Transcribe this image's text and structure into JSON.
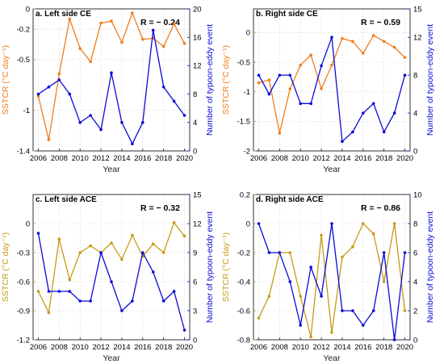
{
  "chart_data": [
    {
      "type": "line",
      "title": "a. Left side CE",
      "annotation": "R = − 0.24",
      "xlabel": "Year",
      "ylabel_left": "SSTCR (°C day⁻¹)",
      "ylabel_right": "Number of typoon-eddy event",
      "xlim": [
        2005.5,
        2020.5
      ],
      "x_ticks": [
        2006,
        2008,
        2010,
        2012,
        2014,
        2016,
        2018,
        2020
      ],
      "y_left_lim": [
        -1.4,
        0
      ],
      "y_left_ticks": [
        -1.4,
        -1,
        -0.5,
        -0.2,
        0
      ],
      "y_left_tick_labels": [
        "-1.4",
        "-1",
        "-0.5",
        "-0.2",
        "0"
      ],
      "y_right_lim": [
        0,
        20
      ],
      "y_right_ticks": [
        0,
        4,
        8,
        12,
        16,
        20
      ],
      "grid": true,
      "left_color": "#f07d1e",
      "right_color": "#0b0bd6",
      "series": [
        {
          "axis": "left",
          "x": [
            2006,
            2007,
            2008,
            2009,
            2010,
            2011,
            2012,
            2013,
            2014,
            2015,
            2016,
            2017,
            2018,
            2019,
            2020
          ],
          "values": [
            -0.86,
            -1.29,
            -0.64,
            -0.1,
            -0.39,
            -0.52,
            -0.14,
            -0.12,
            -0.33,
            -0.04,
            -0.3,
            -0.29,
            -0.37,
            -0.15,
            -0.34
          ]
        },
        {
          "axis": "right",
          "x": [
            2006,
            2007,
            2008,
            2009,
            2010,
            2011,
            2012,
            2013,
            2014,
            2015,
            2016,
            2017,
            2018,
            2019,
            2020
          ],
          "values": [
            8,
            9,
            10,
            8,
            4,
            5,
            3,
            11,
            4,
            1,
            4,
            17,
            9,
            7,
            5
          ]
        }
      ]
    },
    {
      "type": "line",
      "title": "b. Right side CE",
      "annotation": "R = − 0.59",
      "xlabel": "Year",
      "ylabel_left": "SSTCR (°C day⁻¹)",
      "ylabel_right": "Number of typoon-eddy event",
      "xlim": [
        2005.5,
        2020.5
      ],
      "x_ticks": [
        2006,
        2008,
        2010,
        2012,
        2014,
        2016,
        2018,
        2020
      ],
      "y_left_lim": [
        -2,
        0.4
      ],
      "y_left_ticks": [
        -2,
        -1.5,
        -1,
        -0.5,
        0
      ],
      "y_left_tick_labels": [
        "-2",
        "-1.5",
        "-1",
        "-0.5",
        "0"
      ],
      "y_right_lim": [
        0,
        15
      ],
      "y_right_ticks": [
        0,
        4,
        8,
        12,
        15
      ],
      "grid": true,
      "left_color": "#f07d1e",
      "right_color": "#0b0bd6",
      "series": [
        {
          "axis": "left",
          "x": [
            2006,
            2007,
            2008,
            2009,
            2010,
            2011,
            2012,
            2013,
            2014,
            2015,
            2016,
            2017,
            2018,
            2019,
            2020
          ],
          "values": [
            -0.85,
            -0.8,
            -1.7,
            -0.95,
            -0.55,
            -0.38,
            -0.95,
            -0.55,
            -0.1,
            -0.15,
            -0.35,
            -0.05,
            -0.15,
            -0.25,
            -0.42
          ]
        },
        {
          "axis": "right",
          "x": [
            2006,
            2007,
            2008,
            2009,
            2010,
            2011,
            2012,
            2013,
            2014,
            2015,
            2016,
            2017,
            2018,
            2019,
            2020
          ],
          "values": [
            8,
            6,
            8,
            8,
            5,
            5,
            9,
            12,
            1,
            2,
            4,
            5,
            2,
            4,
            8
          ]
        }
      ]
    },
    {
      "type": "line",
      "title": "c. Left side ACE",
      "annotation": "R = − 0.32",
      "xlabel": "Year",
      "ylabel_left": "SSTCR (°C day⁻¹)",
      "ylabel_right": "Number of typoon-eddy event",
      "xlim": [
        2005.5,
        2020.5
      ],
      "x_ticks": [
        2006,
        2008,
        2010,
        2012,
        2014,
        2016,
        2018,
        2020
      ],
      "y_left_lim": [
        -1.2,
        0.3
      ],
      "y_left_ticks": [
        -1.2,
        -0.9,
        -0.6,
        -0.3,
        0
      ],
      "y_left_tick_labels": [
        "-1.2",
        "-0.9",
        "-0.6",
        "-0.3",
        "0"
      ],
      "y_right_lim": [
        0,
        15
      ],
      "y_right_ticks": [
        0,
        3,
        6,
        9,
        12,
        15
      ],
      "grid": true,
      "left_color": "#c89b14",
      "right_color": "#0b0bd6",
      "series": [
        {
          "axis": "left",
          "x": [
            2006,
            2007,
            2008,
            2009,
            2010,
            2011,
            2012,
            2013,
            2014,
            2015,
            2016,
            2017,
            2018,
            2019,
            2020
          ],
          "values": [
            -0.7,
            -0.92,
            -0.16,
            -0.58,
            -0.3,
            -0.23,
            -0.3,
            -0.2,
            -0.37,
            -0.12,
            -0.34,
            -0.21,
            -0.3,
            0.01,
            -0.13
          ]
        },
        {
          "axis": "right",
          "x": [
            2006,
            2007,
            2008,
            2009,
            2010,
            2011,
            2012,
            2013,
            2014,
            2015,
            2016,
            2017,
            2018,
            2019,
            2020
          ],
          "values": [
            11,
            5,
            5,
            5,
            4,
            4,
            9,
            6,
            3,
            4,
            9,
            7,
            4,
            5,
            1
          ]
        }
      ]
    },
    {
      "type": "line",
      "title": "d. Right side ACE",
      "annotation": "R = − 0.86",
      "xlabel": "Year",
      "ylabel_left": "SSTCR (°C day⁻¹)",
      "ylabel_right": "Number of typoon-eddy event",
      "xlim": [
        2005.5,
        2020.5
      ],
      "x_ticks": [
        2006,
        2008,
        2010,
        2012,
        2014,
        2016,
        2018,
        2020
      ],
      "y_left_lim": [
        -0.8,
        0.2
      ],
      "y_left_ticks": [
        -0.8,
        -0.6,
        -0.4,
        -0.2,
        0,
        0.2
      ],
      "y_left_tick_labels": [
        "-0.8",
        "-0.6",
        "-0.4",
        "-0.2",
        "0",
        "0.2"
      ],
      "y_right_lim": [
        0,
        10
      ],
      "y_right_ticks": [
        0,
        2,
        4,
        6,
        8,
        10
      ],
      "grid": true,
      "left_color": "#c89b14",
      "right_color": "#0b0bd6",
      "series": [
        {
          "axis": "left",
          "x": [
            2006,
            2007,
            2008,
            2009,
            2010,
            2011,
            2012,
            2013,
            2014,
            2015,
            2016,
            2017,
            2018,
            2019,
            2020
          ],
          "values": [
            -0.65,
            -0.5,
            -0.2,
            -0.2,
            -0.5,
            -0.78,
            -0.08,
            -0.75,
            -0.23,
            -0.16,
            0.0,
            -0.07,
            -0.4,
            0.0,
            -0.6
          ]
        },
        {
          "axis": "right",
          "x": [
            2006,
            2007,
            2008,
            2009,
            2010,
            2011,
            2012,
            2013,
            2014,
            2015,
            2016,
            2017,
            2018,
            2019,
            2020
          ],
          "values": [
            8,
            6,
            6,
            4,
            1,
            5,
            3,
            8,
            2,
            2,
            1,
            2,
            6,
            0,
            6
          ]
        }
      ]
    }
  ]
}
